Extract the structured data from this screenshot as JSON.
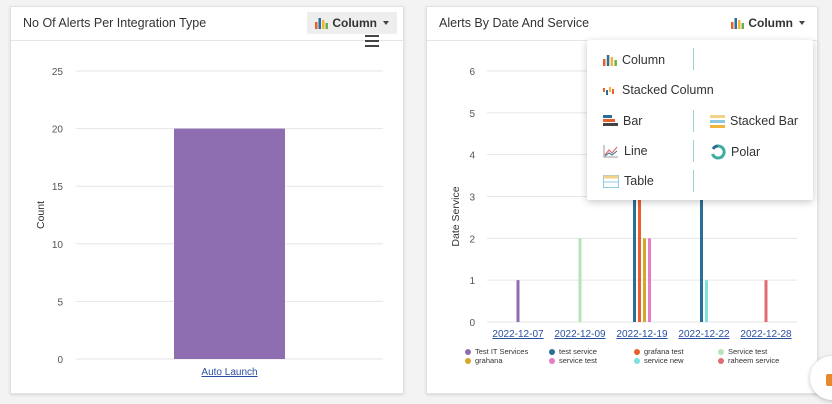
{
  "left_panel": {
    "title": "No Of Alerts Per Integration Type",
    "chart_type_label": "Column"
  },
  "right_panel": {
    "title": "Alerts By Date And Service",
    "chart_type_label": "Column"
  },
  "dropdown": {
    "items": [
      {
        "label": "Column",
        "icon": "column-chart-icon"
      },
      {
        "label": "Stacked Column",
        "icon": "stacked-column-icon"
      },
      {
        "label": "Bar",
        "icon": "bar-chart-icon"
      },
      {
        "label": "Stacked Bar",
        "icon": "stacked-bar-icon"
      },
      {
        "label": "Line",
        "icon": "line-chart-icon"
      },
      {
        "label": "Polar",
        "icon": "polar-chart-icon"
      },
      {
        "label": "Table",
        "icon": "table-icon"
      }
    ]
  },
  "chart_data": [
    {
      "type": "bar",
      "title": "No Of Alerts Per Integration Type",
      "categories": [
        "Auto Launch"
      ],
      "values": [
        20
      ],
      "xlabel": "",
      "ylabel": "Count",
      "ylim": [
        0,
        25
      ],
      "yticks": [
        0,
        5,
        10,
        15,
        20,
        25
      ],
      "grid": true,
      "color": "#8e6eb0"
    },
    {
      "type": "bar",
      "title": "Alerts By Date And Service",
      "categories": [
        "2022-12-07",
        "2022-12-09",
        "2022-12-19",
        "2022-12-22",
        "2022-12-28"
      ],
      "xlabel": "",
      "ylabel": "Date Service",
      "ylim": [
        0,
        6
      ],
      "yticks": [
        0,
        1,
        2,
        3,
        4,
        5,
        6
      ],
      "grid": true,
      "legend_position": "bottom",
      "series": [
        {
          "name": "Test IT Services",
          "color": "#8e6eb0",
          "values": [
            1,
            0,
            0,
            0,
            0
          ]
        },
        {
          "name": "test service",
          "color": "#2b6f94",
          "values": [
            0,
            0,
            3,
            3,
            0
          ]
        },
        {
          "name": "grafana test",
          "color": "#e8612c",
          "values": [
            0,
            0,
            3,
            0,
            0
          ]
        },
        {
          "name": "Service test",
          "color": "#b9e3b6",
          "values": [
            0,
            2,
            0,
            0,
            0
          ]
        },
        {
          "name": "grahana",
          "color": "#d4a72c",
          "values": [
            0,
            0,
            2,
            0,
            0
          ]
        },
        {
          "name": "service test",
          "color": "#e77cc9",
          "values": [
            0,
            0,
            2,
            0,
            0
          ]
        },
        {
          "name": "service new",
          "color": "#7fe0dc",
          "values": [
            0,
            0,
            0,
            1,
            0
          ]
        },
        {
          "name": "raheem service",
          "color": "#e06b75",
          "values": [
            0,
            0,
            0,
            0,
            1
          ]
        }
      ]
    }
  ]
}
